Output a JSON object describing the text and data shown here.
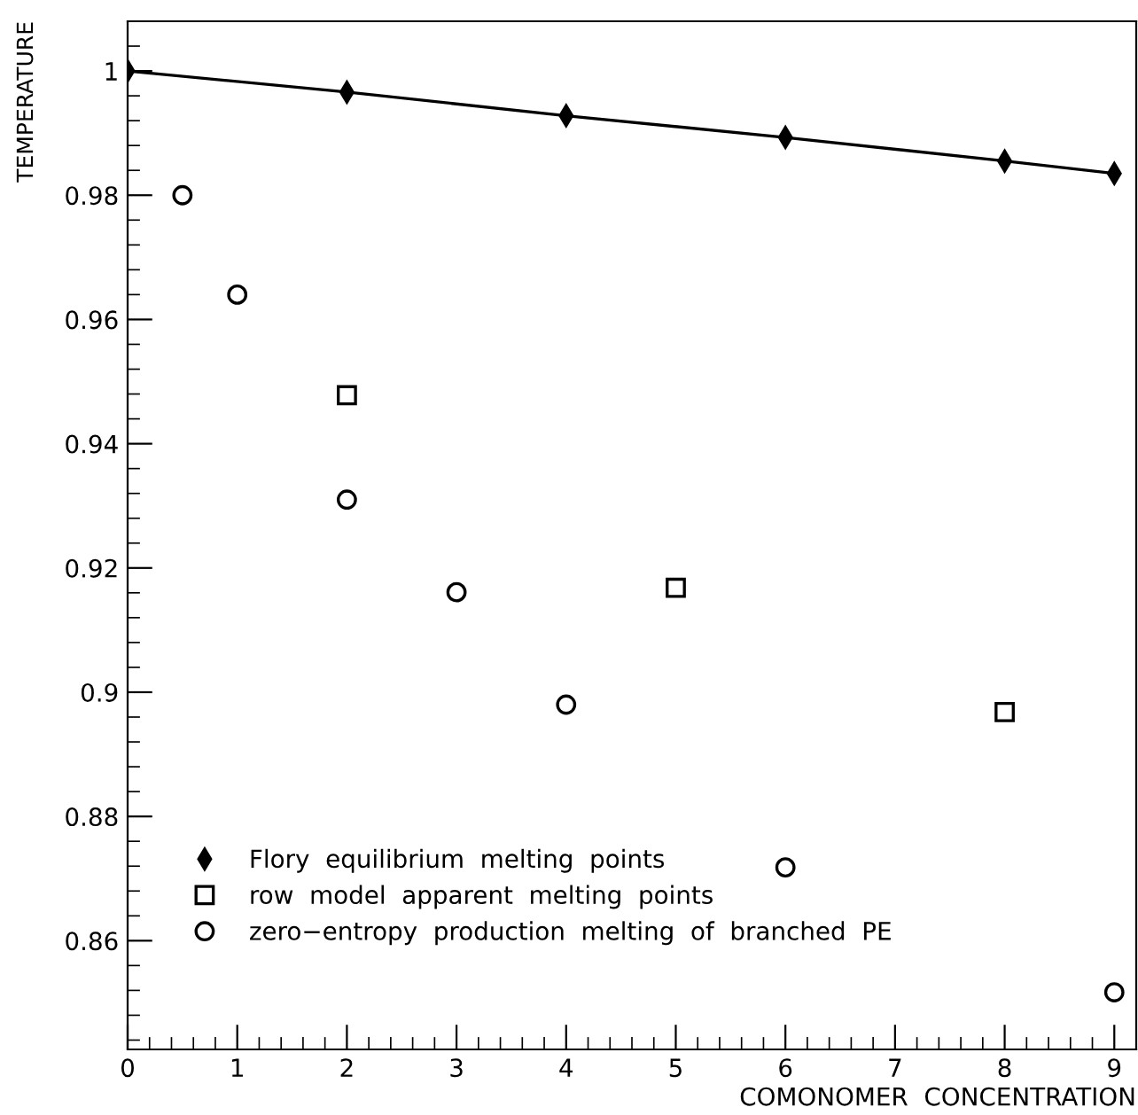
{
  "chart_data": {
    "type": "scatter",
    "xlabel": "COMONOMER  CONCENTRATION",
    "ylabel": "TEMPERATURE",
    "xlim": [
      0,
      9.2
    ],
    "xticks": [
      0,
      1,
      2,
      3,
      4,
      5,
      6,
      7,
      8,
      9
    ],
    "ylim": [
      0.8425,
      1.008
    ],
    "yticks": [
      0.86,
      0.88,
      0.9,
      0.92,
      0.94,
      0.96,
      0.98,
      1
    ],
    "grid": false,
    "legend": "bottom left",
    "series": [
      {
        "name": "Flory  equilibrium  melting  points",
        "type": "line",
        "marker": "diamond",
        "color": "#000000",
        "x": [
          0,
          2,
          4,
          6,
          8,
          9
        ],
        "values": [
          1,
          0.9966,
          0.9928,
          0.9893,
          0.9855,
          0.9835
        ]
      },
      {
        "name": "row  model  apparent  melting  points",
        "marker": "square",
        "color": "#000000",
        "x": [
          2,
          5,
          8
        ],
        "values": [
          0.9478,
          0.9168,
          0.8968
        ]
      },
      {
        "name": "zero−entropy  production  melting  of  branched  PE",
        "marker": "circle",
        "color": "#000000",
        "x": [
          0.5,
          1,
          2,
          3,
          4,
          6,
          9
        ],
        "values": [
          0.98,
          0.964,
          0.931,
          0.9161,
          0.898,
          0.8718,
          0.8517
        ]
      }
    ]
  }
}
